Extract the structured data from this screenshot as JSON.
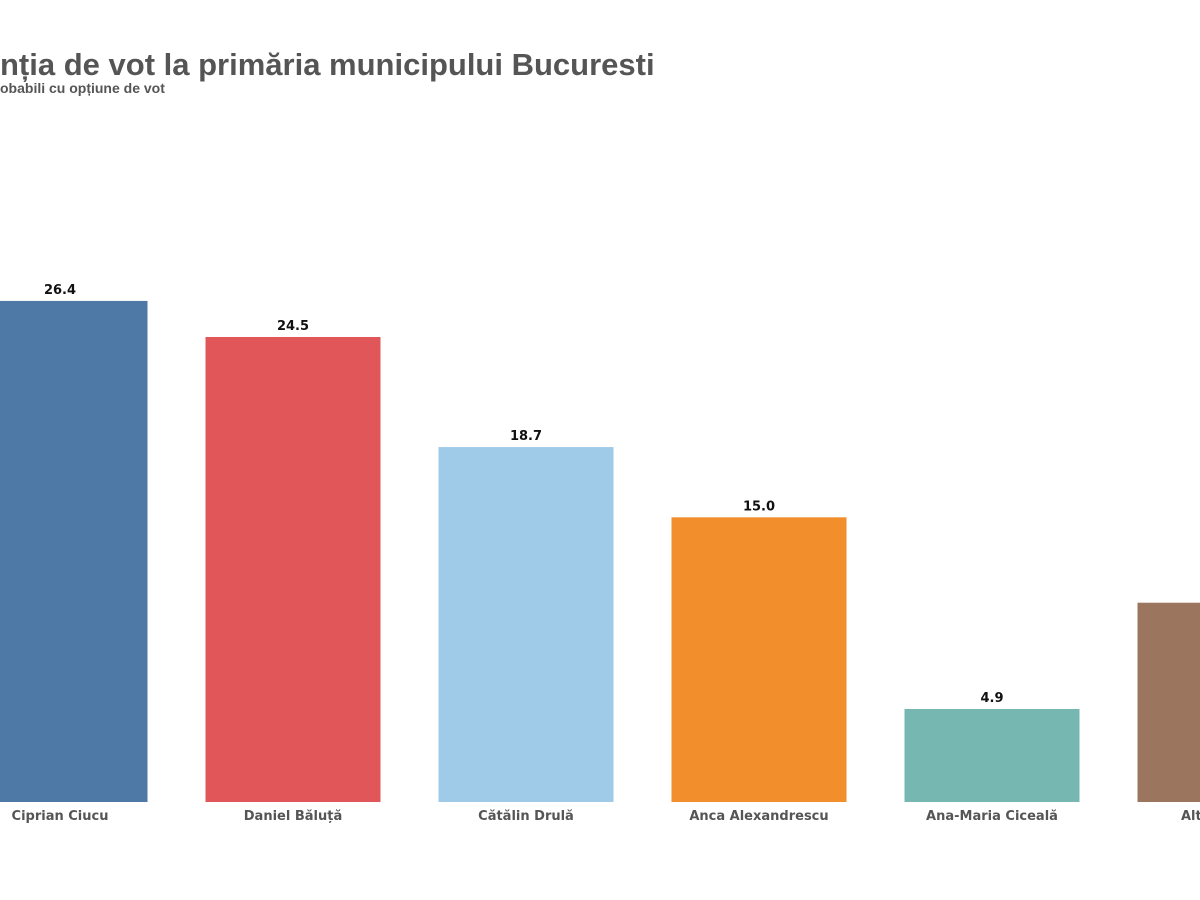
{
  "chart_data": {
    "type": "bar",
    "title": "nția de vot la primăria municipului Bucuresti",
    "subtitle": "obabili cu opțiune de vot",
    "categories": [
      "Ciprian Ciucu",
      "Daniel Băluță",
      "Cătălin Drulă",
      "Anca Alexandrescu",
      "Ana-Maria Ciceală",
      "Alt"
    ],
    "values": [
      26.4,
      24.5,
      18.7,
      15.0,
      4.9,
      10.5
    ],
    "colors": [
      "#4e79a7",
      "#e15759",
      "#a0cbe8",
      "#f28e2b",
      "#76b7b2",
      "#9c755f"
    ],
    "ylim": [
      0,
      30
    ],
    "grid": false,
    "xlabel": "",
    "ylabel": ""
  }
}
